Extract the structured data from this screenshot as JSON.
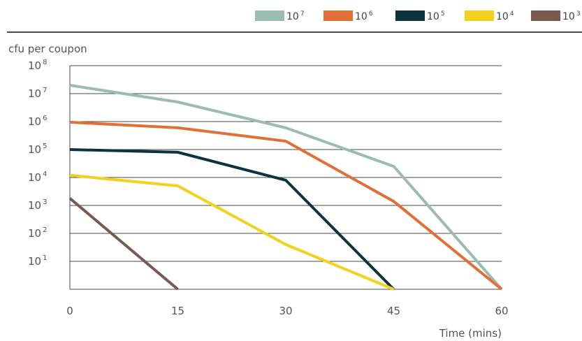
{
  "chart_data": {
    "type": "line",
    "title": "",
    "ylabel": "cfu per coupon",
    "xlabel": "Time (mins)",
    "x": [
      0,
      15,
      30,
      45,
      60
    ],
    "x_ticks": [
      "0",
      "15",
      "30",
      "45",
      "60"
    ],
    "y_scale": "log",
    "y_ticks": [
      {
        "base": "10",
        "exp": "8"
      },
      {
        "base": "10",
        "exp": "7"
      },
      {
        "base": "10",
        "exp": "6"
      },
      {
        "base": "10",
        "exp": "5"
      },
      {
        "base": "10",
        "exp": "4"
      },
      {
        "base": "10",
        "exp": "3"
      },
      {
        "base": "10",
        "exp": "2"
      },
      {
        "base": "10",
        "exp": "1"
      }
    ],
    "ylim": [
      1,
      100000000
    ],
    "grid": "horizontal",
    "legend_position": "top",
    "series": [
      {
        "name": {
          "base": "10",
          "exp": "7"
        },
        "color": "#9bbcae",
        "points": [
          [
            0,
            20000000
          ],
          [
            15,
            5000000
          ],
          [
            30,
            600000
          ],
          [
            45,
            25000
          ],
          [
            60,
            1
          ]
        ]
      },
      {
        "name": {
          "base": "10",
          "exp": "6"
        },
        "color": "#e07038",
        "points": [
          [
            0,
            950000
          ],
          [
            15,
            600000
          ],
          [
            30,
            200000
          ],
          [
            45,
            1400
          ],
          [
            60,
            1
          ]
        ]
      },
      {
        "name": {
          "base": "10",
          "exp": "5"
        },
        "color": "#0d3340",
        "points": [
          [
            0,
            100000
          ],
          [
            15,
            80000
          ],
          [
            30,
            8000
          ],
          [
            45,
            1
          ]
        ]
      },
      {
        "name": {
          "base": "10",
          "exp": "4"
        },
        "color": "#f2d21c",
        "points": [
          [
            0,
            12000
          ],
          [
            15,
            5000
          ],
          [
            30,
            40
          ],
          [
            45,
            1
          ]
        ]
      },
      {
        "name": {
          "base": "10",
          "exp": "3"
        },
        "color": "#7a5a4e",
        "points": [
          [
            0,
            1800
          ],
          [
            15,
            1
          ]
        ]
      }
    ]
  }
}
